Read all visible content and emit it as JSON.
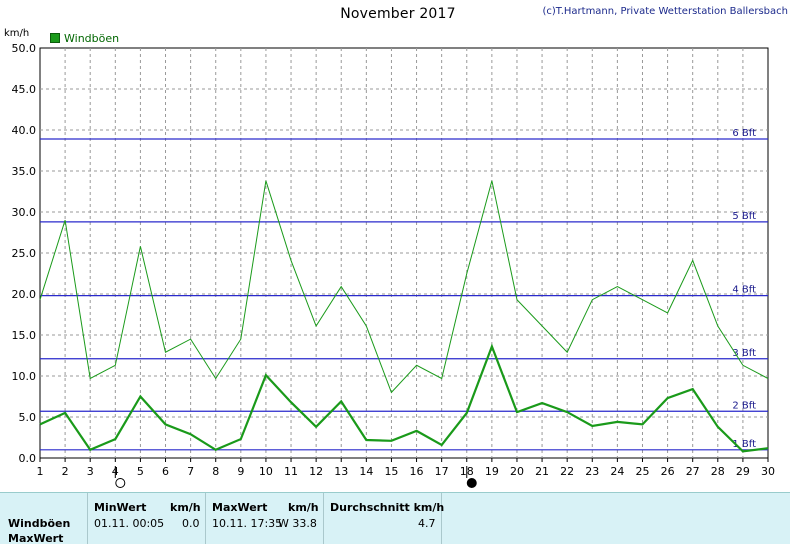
{
  "header": {
    "title": "November 2017",
    "credit": "(c)T.Hartmann, Private Wetterstation Ballersbach"
  },
  "colors": {
    "series": "#1a9a1a",
    "beaufort_line": "#2a2acc",
    "grid": "#999999",
    "table_bg": "#d8f2f6"
  },
  "chart_data": {
    "type": "line",
    "ylabel": "km/h",
    "ylim": [
      0,
      50
    ],
    "yticks": [
      "0.0",
      "5.0",
      "10.0",
      "15.0",
      "20.0",
      "25.0",
      "30.0",
      "35.0",
      "40.0",
      "45.0",
      "50.0"
    ],
    "x": [
      1,
      2,
      3,
      4,
      5,
      6,
      7,
      8,
      9,
      10,
      11,
      12,
      13,
      14,
      15,
      16,
      17,
      18,
      19,
      20,
      21,
      22,
      23,
      24,
      25,
      26,
      27,
      28,
      29,
      30
    ],
    "legend": [
      "Windböen"
    ],
    "legend_position": "top-left",
    "grid": true,
    "series": [
      {
        "name": "Windböen",
        "stat": "max",
        "values": [
          19.3,
          29.0,
          9.7,
          11.3,
          25.8,
          12.9,
          14.5,
          9.7,
          14.5,
          33.8,
          24.1,
          16.1,
          20.9,
          16.1,
          8.0,
          11.3,
          9.7,
          22.5,
          33.8,
          19.3,
          16.1,
          12.9,
          19.3,
          20.9,
          19.3,
          17.7,
          24.1,
          16.1,
          11.3,
          9.7
        ]
      },
      {
        "name": "Windböen",
        "stat": "mean",
        "values": [
          4.1,
          5.5,
          1.0,
          2.3,
          7.5,
          4.1,
          2.9,
          1.0,
          2.3,
          10.1,
          6.8,
          3.8,
          6.9,
          2.2,
          2.1,
          3.3,
          1.6,
          5.5,
          13.6,
          5.6,
          6.7,
          5.6,
          3.9,
          4.4,
          4.1,
          7.3,
          8.4,
          3.8,
          0.8,
          1.2
        ]
      }
    ],
    "reference_lines": [
      {
        "label": "1 Bft",
        "value": 1.0
      },
      {
        "label": "2 Bft",
        "value": 5.7
      },
      {
        "label": "3 Bft",
        "value": 12.1
      },
      {
        "label": "4 Bft",
        "value": 19.8
      },
      {
        "label": "5 Bft",
        "value": 28.8
      },
      {
        "label": "6 Bft",
        "value": 38.9
      }
    ],
    "moon_phases": [
      {
        "day": 4,
        "phase": "full"
      },
      {
        "day": 18,
        "phase": "new"
      }
    ]
  },
  "stats_table": {
    "row_labels": [
      "Windböen",
      "MaxWert"
    ],
    "min_header": "MinWert",
    "min_unit": "km/h",
    "min_time": "01.11.  00:05",
    "min_value": "0.0",
    "max_header": "MaxWert",
    "max_unit": "km/h",
    "max_time": "10.11.  17:35",
    "max_value": "W 33.8",
    "avg_header": "Durchschnitt km/h",
    "avg_value": "4.7"
  }
}
